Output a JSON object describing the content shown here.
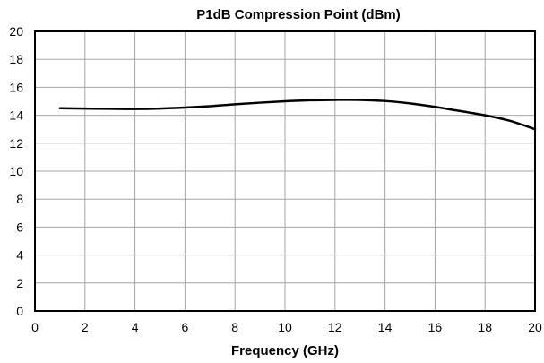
{
  "chart_data": {
    "type": "line",
    "title": "P1dB Compression Point (dBm)",
    "xlabel": "Frequency (GHz)",
    "ylabel": "",
    "xlim": [
      0,
      20
    ],
    "ylim": [
      0,
      20
    ],
    "xticks": [
      0,
      2,
      4,
      6,
      8,
      10,
      12,
      14,
      16,
      18,
      20
    ],
    "yticks": [
      0,
      2,
      4,
      6,
      8,
      10,
      12,
      14,
      16,
      18,
      20
    ],
    "grid": true,
    "legend": "none",
    "series": [
      {
        "color": "#000000",
        "x": [
          1,
          2,
          3,
          4,
          5,
          6,
          7,
          8,
          9,
          10,
          11,
          12,
          13,
          14,
          15,
          16,
          17,
          18,
          19,
          20
        ],
        "y": [
          14.5,
          14.48,
          14.46,
          14.45,
          14.48,
          14.55,
          14.65,
          14.78,
          14.9,
          15.0,
          15.07,
          15.1,
          15.1,
          15.02,
          14.85,
          14.6,
          14.3,
          14.0,
          13.6,
          13.0
        ]
      }
    ]
  }
}
